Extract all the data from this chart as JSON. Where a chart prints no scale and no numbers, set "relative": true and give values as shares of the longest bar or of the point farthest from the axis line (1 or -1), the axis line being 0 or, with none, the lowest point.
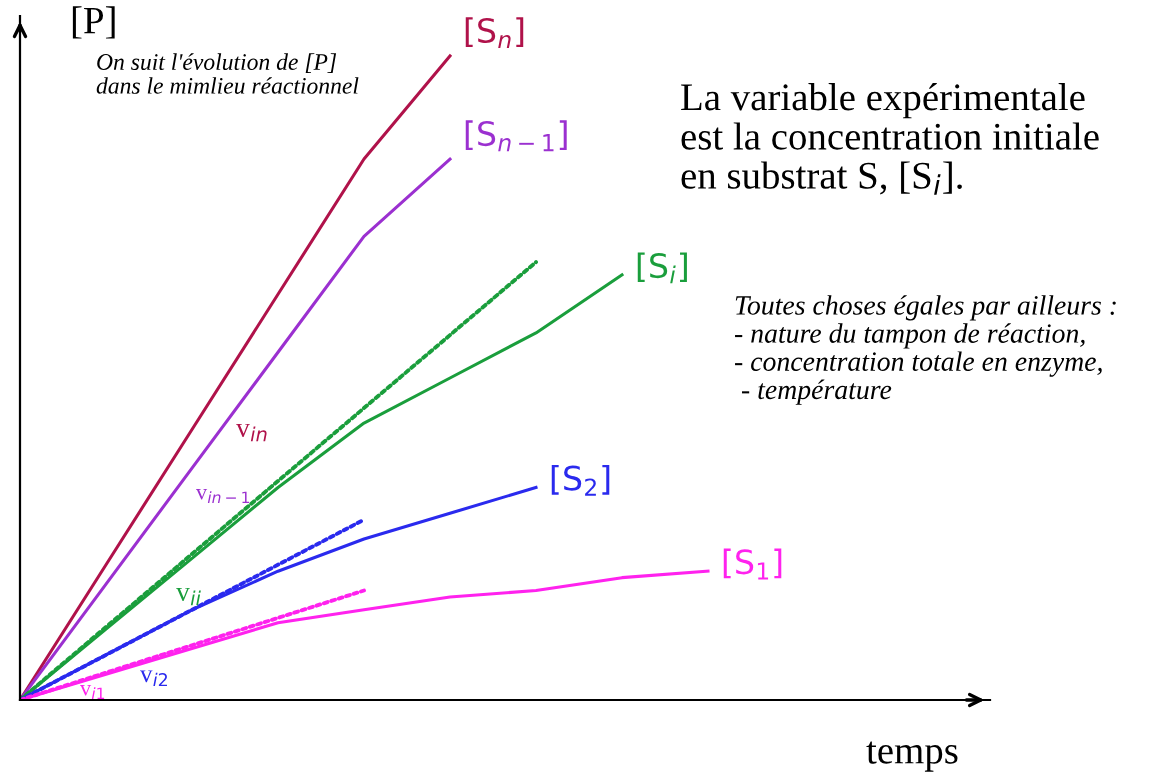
{
  "chart_data": {
    "type": "line",
    "relative": true,
    "xlabel": "temps",
    "ylabel": "[P]",
    "categories": [
      null,
      null,
      null,
      null,
      null,
      null,
      null,
      null,
      null
    ],
    "series": [
      {
        "name": "[S$_{n}$]",
        "color": "#b0124a",
        "values": [
          0,
          0.21,
          0.42,
          0.63,
          0.84,
          1.0,
          null,
          null,
          null
        ]
      },
      {
        "name": "[S$_{n−1}$]",
        "color": "#9b30d0",
        "values": [
          0,
          0.18,
          0.36,
          0.54,
          0.72,
          0.84,
          null,
          null,
          null
        ]
      },
      {
        "name": "[S$_{i}$]",
        "color": "#1a9e3c",
        "values": [
          0,
          0.11,
          0.22,
          0.33,
          0.43,
          0.5,
          0.57,
          0.66,
          null
        ]
      },
      {
        "name": "[S$_{2}$]",
        "color": "#2a2aee",
        "values": [
          0,
          0.07,
          0.14,
          0.2,
          0.25,
          0.29,
          0.33,
          null,
          null
        ]
      },
      {
        "name": "[S$_{1}$]",
        "color": "#ff22ee",
        "values": [
          0,
          0.04,
          0.08,
          0.12,
          0.14,
          0.16,
          0.17,
          0.19,
          0.2
        ]
      },
      {
        "color": "#1a9e3c",
        "line_style": "dotted",
        "values": [
          0,
          null,
          null,
          null,
          null,
          null,
          0.68,
          null,
          null
        ]
      },
      {
        "color": "#2a2aee",
        "line_style": "dotted",
        "values": [
          0,
          null,
          null,
          null,
          0.28,
          null,
          null,
          null,
          null
        ]
      },
      {
        "color": "#ff22ee",
        "line_style": "dotted",
        "values": [
          0,
          null,
          null,
          null,
          0.17,
          null,
          null,
          null,
          null
        ]
      }
    ],
    "annotations": [
      "On suit l'évolution de [P]\ndans le mimlieu réactionnel",
      "La variable expérimentale\nest la concentration initiale\nen substrat S, [S$_{i}$].",
      "Toutes choses égales par ailleurs :\n- nature du tampon de réaction,\n- concentration totale en enzyme,\n - température",
      "v$_{in}$",
      "v$_{in−1}$",
      "v$_{ii}$",
      "v$_{i2}$",
      "v$_{i1}$"
    ],
    "grid": false,
    "legend": false
  }
}
